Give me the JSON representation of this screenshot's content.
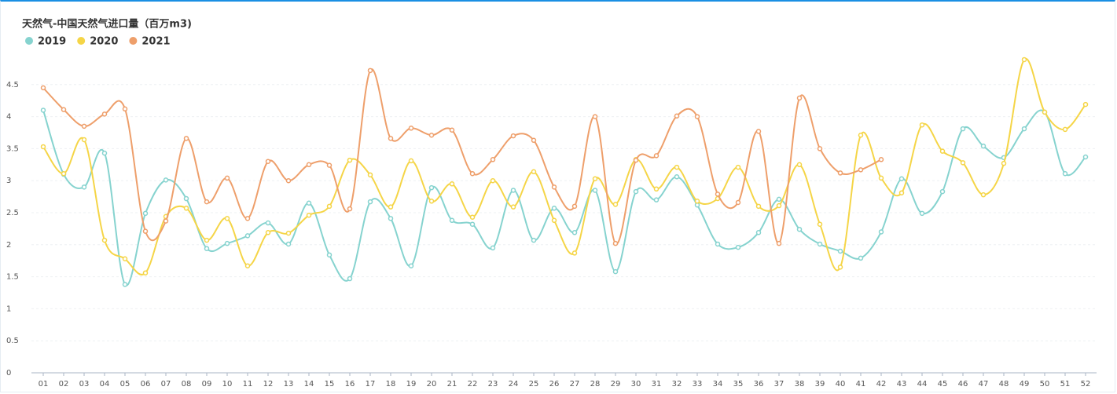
{
  "chart_data": {
    "type": "line",
    "title": "天然气-中国天然气进口量（百万m3)",
    "categories": [
      "01",
      "02",
      "03",
      "04",
      "05",
      "06",
      "07",
      "08",
      "09",
      "10",
      "11",
      "12",
      "13",
      "14",
      "15",
      "16",
      "17",
      "18",
      "19",
      "20",
      "21",
      "22",
      "23",
      "24",
      "25",
      "26",
      "27",
      "28",
      "29",
      "30",
      "31",
      "32",
      "33",
      "34",
      "35",
      "36",
      "37",
      "38",
      "39",
      "40",
      "41",
      "42",
      "43",
      "44",
      "45",
      "46",
      "47",
      "48",
      "49",
      "50",
      "51",
      "52"
    ],
    "series": [
      {
        "name": "2019",
        "color": "#86d3cf",
        "values": [
          4.1,
          3.1,
          2.9,
          3.43,
          1.38,
          2.49,
          3.01,
          2.72,
          1.94,
          2.02,
          2.14,
          2.34,
          2.01,
          2.65,
          1.84,
          1.47,
          2.67,
          2.41,
          1.67,
          2.89,
          2.38,
          2.32,
          1.95,
          2.85,
          2.07,
          2.57,
          2.19,
          2.85,
          1.58,
          2.83,
          2.7,
          3.06,
          2.62,
          2.01,
          1.96,
          2.19,
          2.71,
          2.24,
          2.01,
          1.9,
          1.79,
          2.2,
          3.03,
          2.49,
          2.83,
          3.81,
          3.54,
          3.36,
          3.81,
          4.07,
          3.11,
          3.37
        ]
      },
      {
        "name": "2020",
        "color": "#f5d547",
        "values": [
          3.53,
          3.11,
          3.64,
          2.07,
          1.78,
          1.56,
          2.44,
          2.57,
          2.07,
          2.41,
          1.67,
          2.19,
          2.18,
          2.46,
          2.6,
          3.32,
          3.09,
          2.59,
          3.31,
          2.68,
          2.95,
          2.43,
          3.0,
          2.59,
          3.14,
          2.38,
          1.87,
          3.03,
          2.63,
          3.33,
          2.87,
          3.21,
          2.68,
          2.72,
          3.21,
          2.6,
          2.61,
          3.25,
          2.32,
          1.65,
          3.71,
          3.04,
          2.81,
          3.87,
          3.46,
          3.28,
          2.78,
          3.27,
          4.89,
          4.07,
          3.8,
          4.19
        ]
      },
      {
        "name": "2021",
        "color": "#ee9f6b",
        "values": [
          4.45,
          4.11,
          3.85,
          4.04,
          4.12,
          2.21,
          2.37,
          3.66,
          2.67,
          3.04,
          2.41,
          3.3,
          3.0,
          3.25,
          3.24,
          2.56,
          4.72,
          3.66,
          3.82,
          3.71,
          3.79,
          3.11,
          3.33,
          3.7,
          3.63,
          2.9,
          2.6,
          4.0,
          2.02,
          3.32,
          3.39,
          4.01,
          4.0,
          2.79,
          2.66,
          3.77,
          2.02,
          4.29,
          3.5,
          3.12,
          3.17,
          3.33,
          null,
          null,
          null,
          null,
          null,
          null,
          null,
          null,
          null,
          null
        ]
      }
    ],
    "ylim": [
      0,
      5
    ],
    "yticks": [
      0,
      0.5,
      1,
      1.5,
      2,
      2.5,
      3,
      3.5,
      4,
      4.5
    ],
    "grid": true
  }
}
